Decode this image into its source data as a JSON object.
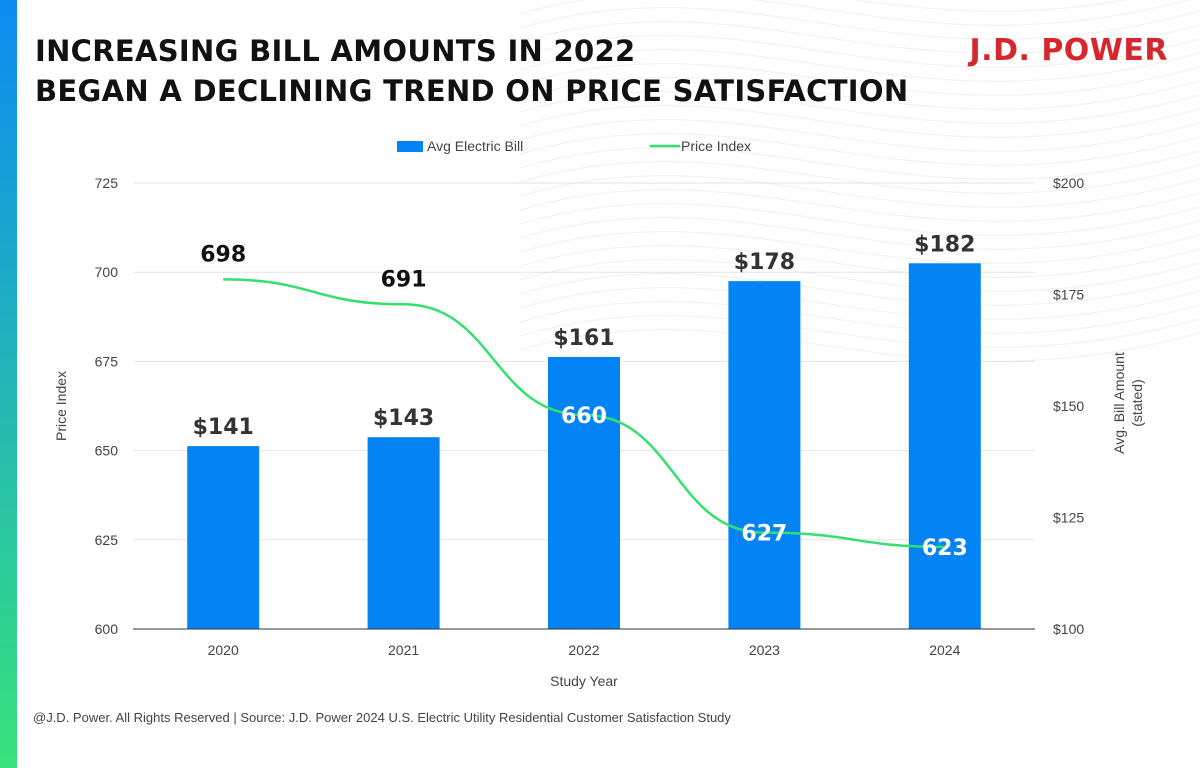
{
  "header": {
    "title_line_1": "INCREASING BILL AMOUNTS IN 2022",
    "title_line_2": "BEGAN A DECLINING TREND ON PRICE SATISFACTION",
    "brand": "J.D. POWER"
  },
  "footer": {
    "source": "@J.D. Power. All Rights Reserved | Source: J.D. Power 2024 U.S. Electric Utility Residential Customer Satisfaction Study"
  },
  "colors": {
    "bar": "#0483f5",
    "line": "#34e06d",
    "brand_red": "#d7272e",
    "accent_top": "#0c8bf2",
    "accent_bottom": "#39e27a",
    "title": "#111111",
    "axis_text": "#444444",
    "grid": "#e3e3e3"
  },
  "chart_data": {
    "type": "bar",
    "x": [
      "2020",
      "2021",
      "2022",
      "2023",
      "2024"
    ],
    "xlabel": "Study Year",
    "series": [
      {
        "name": "Avg Electric Bill",
        "kind": "bar",
        "axis": "right",
        "values": [
          141,
          143,
          161,
          178,
          182
        ],
        "data_labels": [
          "$141",
          "$143",
          "$161",
          "$178",
          "$182"
        ]
      },
      {
        "name": "Price Index",
        "kind": "line",
        "axis": "left",
        "values": [
          698,
          691,
          660,
          627,
          623
        ],
        "data_labels": [
          "698",
          "691",
          "660",
          "627",
          "623"
        ]
      }
    ],
    "y_left": {
      "label": "Price Index",
      "lim": [
        600,
        725
      ],
      "ticks": [
        600,
        625,
        650,
        675,
        700,
        725
      ],
      "tick_labels": [
        "600",
        "625",
        "650",
        "675",
        "700",
        "725"
      ]
    },
    "y_right": {
      "label_line_1": "Avg. Bill Amount",
      "label_line_2": "(stated)",
      "lim": [
        100,
        200
      ],
      "ticks": [
        100,
        125,
        150,
        175,
        200
      ],
      "tick_labels": [
        "$100",
        "$125",
        "$150",
        "$175",
        "$200"
      ]
    },
    "legend": {
      "placement": "top-center",
      "entries": [
        "Avg Electric Bill",
        "Price Index"
      ]
    },
    "grid": true
  }
}
